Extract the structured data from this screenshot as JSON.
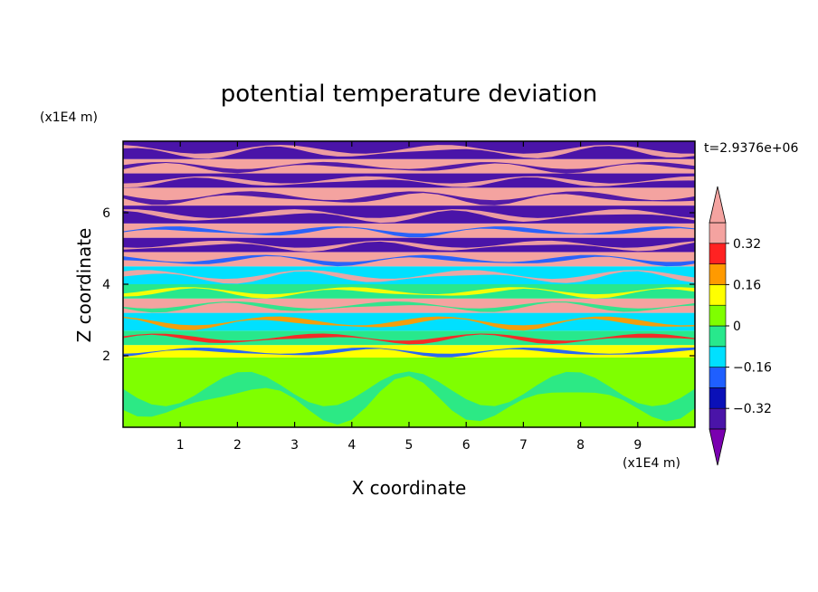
{
  "chart_data": {
    "type": "heatmap",
    "title": "potential temperature deviation",
    "xlabel": "X coordinate",
    "ylabel": "Z coordinate",
    "x_unit": "(x1E4 m)",
    "y_unit": "(x1E4 m)",
    "time_label": "t=2.9376e+06",
    "xlim": [
      0,
      10
    ],
    "ylim": [
      0,
      8
    ],
    "x_ticks": [
      "1",
      "2",
      "3",
      "4",
      "5",
      "6",
      "7",
      "8",
      "9"
    ],
    "y_ticks": [
      "2",
      "4",
      "6"
    ],
    "colorbar": {
      "labels": [
        "0.32",
        "0.16",
        "0",
        "−0.16",
        "−0.32"
      ],
      "label_values": [
        0.32,
        0.16,
        0,
        -0.16,
        -0.32
      ],
      "levels": [
        -0.4,
        -0.32,
        -0.24,
        -0.16,
        -0.08,
        0,
        0.08,
        0.16,
        0.24,
        0.32,
        0.4
      ],
      "colors": [
        "#7a00b0",
        "#4a14a8",
        "#0a10b8",
        "#1f5fff",
        "#00e0ff",
        "#28e88c",
        "#7fff00",
        "#ffff00",
        "#ff9a00",
        "#ff2222",
        "#f4a3a0"
      ],
      "extend": "both"
    },
    "bands": [
      {
        "z0": 0.0,
        "z1": 1.95,
        "value": 0.02,
        "alt_value": -0.02
      },
      {
        "z0": 1.95,
        "z1": 2.3,
        "value": 0.1,
        "alt_value": -0.2
      },
      {
        "z0": 2.3,
        "z1": 2.7,
        "value": -0.06,
        "alt_value": 0.3
      },
      {
        "z0": 2.7,
        "z1": 3.2,
        "value": -0.1,
        "alt_value": 0.2
      },
      {
        "z0": 3.2,
        "z1": 3.6,
        "value": 0.36,
        "alt_value": -0.04
      },
      {
        "z0": 3.6,
        "z1": 4.0,
        "value": -0.06,
        "alt_value": 0.1
      },
      {
        "z0": 4.0,
        "z1": 4.5,
        "value": -0.1,
        "alt_value": 0.36
      },
      {
        "z0": 4.5,
        "z1": 4.9,
        "value": 0.36,
        "alt_value": -0.22
      },
      {
        "z0": 4.9,
        "z1": 5.3,
        "value": -0.36,
        "alt_value": 0.36
      },
      {
        "z0": 5.3,
        "z1": 5.7,
        "value": 0.36,
        "alt_value": -0.2
      },
      {
        "z0": 5.7,
        "z1": 6.2,
        "value": -0.36,
        "alt_value": 0.36
      },
      {
        "z0": 6.2,
        "z1": 6.7,
        "value": 0.36,
        "alt_value": -0.36
      },
      {
        "z0": 6.7,
        "z1": 7.1,
        "value": -0.38,
        "alt_value": 0.36
      },
      {
        "z0": 7.1,
        "z1": 7.5,
        "value": 0.38,
        "alt_value": -0.38
      },
      {
        "z0": 7.5,
        "z1": 8.0,
        "value": -0.38,
        "alt_value": 0.38
      }
    ]
  }
}
